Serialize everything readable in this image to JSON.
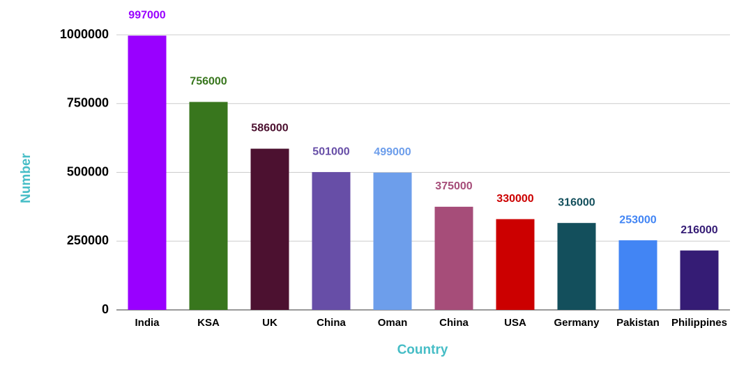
{
  "chart_data": {
    "type": "bar",
    "x_label": "Country",
    "y_label": "Number",
    "categories": [
      "India",
      "KSA",
      "UK",
      "China",
      "Oman",
      "China",
      "USA",
      "Germany",
      "Pakistan",
      "Philippines"
    ],
    "values": [
      997000,
      756000,
      586000,
      501000,
      499000,
      375000,
      330000,
      316000,
      253000,
      216000
    ],
    "colors": [
      "#9900ff",
      "#38761d",
      "#4c1130",
      "#674ea7",
      "#6d9eeb",
      "#a64d79",
      "#cc0000",
      "#134f5c",
      "#4285f4",
      "#351c75"
    ],
    "ylim": [
      0,
      1000000
    ],
    "yticks": [
      0,
      250000,
      500000,
      750000,
      1000000
    ],
    "grid": true,
    "axis_title_color": "#46bdc6"
  }
}
